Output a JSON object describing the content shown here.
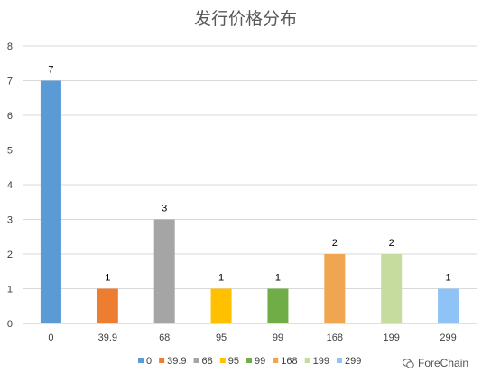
{
  "chart_data": {
    "type": "bar",
    "title": "发行价格分布",
    "categories": [
      "0",
      "39.9",
      "68",
      "95",
      "99",
      "168",
      "199",
      "299"
    ],
    "values": [
      7,
      1,
      3,
      1,
      1,
      2,
      2,
      1
    ],
    "colors": [
      "#5b9bd5",
      "#ed7d31",
      "#a5a5a5",
      "#ffc000",
      "#70ad47",
      "#f0a550",
      "#c5dc9e",
      "#8fc3f5"
    ],
    "ylim": [
      0,
      8
    ],
    "yticks": [
      0,
      1,
      2,
      3,
      4,
      5,
      6,
      7,
      8
    ],
    "grid": true,
    "legend": "bottom",
    "data_labels": true
  },
  "watermark": {
    "text": "ForeChain",
    "icon": "wechat-icon"
  }
}
